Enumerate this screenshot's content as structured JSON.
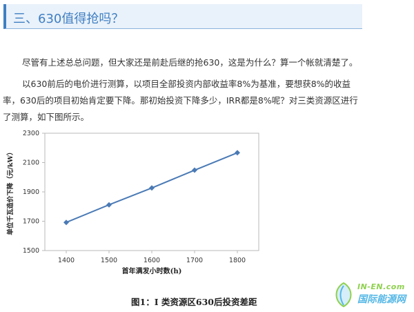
{
  "section": {
    "title": "三、630值得抢吗？"
  },
  "paragraphs": [
    "尽管有上述总总问题，但大家还是前赴后继的抢630，这是为什么？算一个帐就清楚了。",
    "以630前后的电价进行测算，以项目全部投资内部收益率8%为基准，要想获8%的收益率，630后的项目初始肯定要下降。那初始投资下降多少，IRR都是8%呢？对三类资源区进行了测算，如下图所示。"
  ],
  "figure": {
    "caption": "图1：Ⅰ 类资源区630后投资差距"
  },
  "watermark": {
    "en": "IN-EN.com",
    "cn": "国际能源网"
  },
  "colors": {
    "accent": "#3f7fc2",
    "line": "#4a7ab5",
    "header_bg": "#e9f1fa"
  },
  "chart_data": {
    "type": "line",
    "x": [
      1400,
      1500,
      1600,
      1700,
      1800
    ],
    "y": [
      1692,
      1812,
      1927,
      2048,
      2167
    ],
    "xlabel": "首年满发小时数(h)",
    "ylabel": "单位千瓦造价下降（元/kW）",
    "xlim": [
      1350,
      1850
    ],
    "ylim": [
      1500,
      2300
    ],
    "x_ticks": [
      1400,
      1500,
      1600,
      1700,
      1800
    ],
    "y_ticks": [
      1500,
      1700,
      1900,
      2100,
      2300
    ],
    "grid": false,
    "legend": "none"
  }
}
